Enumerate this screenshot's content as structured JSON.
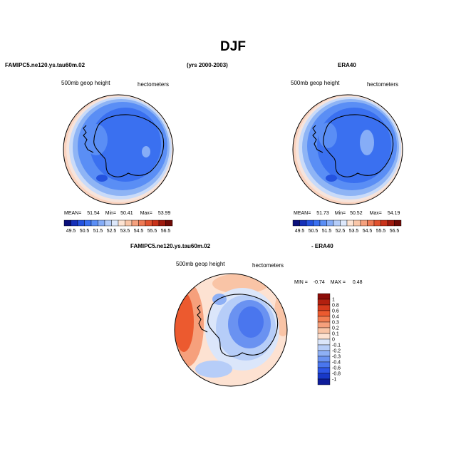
{
  "figure": {
    "title": "DJF",
    "header": {
      "left": "FAMIPC5.ne120.ys.tau60m.02",
      "center": "(yrs 2000-2003)",
      "right": "ERA40"
    },
    "diff_header": {
      "left": "FAMIPC5.ne120.ys.tau60m.02",
      "right": "- ERA40"
    }
  },
  "chart_data": [
    {
      "type": "heatmap",
      "subtype": "polar-contour-map",
      "panel": "model",
      "variable_label": "500mb geop height",
      "units_label": "hectometers",
      "stats": {
        "mean_label": "MEAN=",
        "mean": "51.54",
        "min_label": "Min=",
        "min": "50.41",
        "max_label": "Max=",
        "max": "53.99"
      },
      "colorbar": {
        "orientation": "horizontal",
        "ticks": [
          "49.5",
          "50.5",
          "51.5",
          "52.5",
          "53.5",
          "54.5",
          "55.5",
          "56.5"
        ],
        "colors": [
          "#0a0f7a",
          "#1530b8",
          "#2452de",
          "#3a70f0",
          "#5a8ef5",
          "#86adf7",
          "#b5cdf9",
          "#dde8fb",
          "#fde3d2",
          "#f9c6a8",
          "#f5a17e",
          "#ee7a55",
          "#e0522f",
          "#c8321a",
          "#9e1a0e",
          "#6e0a06"
        ]
      }
    },
    {
      "type": "heatmap",
      "subtype": "polar-contour-map",
      "panel": "obs",
      "variable_label": "500mb geop height",
      "units_label": "hectometers",
      "stats": {
        "mean_label": "MEAN=",
        "mean": "51.73",
        "min_label": "Min=",
        "min": "50.52",
        "max_label": "Max=",
        "max": "54.19"
      },
      "colorbar": {
        "orientation": "horizontal",
        "ticks": [
          "49.5",
          "50.5",
          "51.5",
          "52.5",
          "53.5",
          "54.5",
          "55.5",
          "56.5"
        ],
        "colors": [
          "#0a0f7a",
          "#1530b8",
          "#2452de",
          "#3a70f0",
          "#5a8ef5",
          "#86adf7",
          "#b5cdf9",
          "#dde8fb",
          "#fde3d2",
          "#f9c6a8",
          "#f5a17e",
          "#ee7a55",
          "#e0522f",
          "#c8321a",
          "#9e1a0e",
          "#6e0a06"
        ]
      }
    },
    {
      "type": "heatmap",
      "subtype": "polar-contour-map",
      "panel": "difference",
      "variable_label": "500mb geop height",
      "units_label": "hectometers",
      "stats": {
        "min_label": "MIN =",
        "min": "-0.74",
        "max_label": "MAX =",
        "max": "0.48"
      },
      "colorbar": {
        "orientation": "vertical",
        "ticks": [
          "1",
          "0.8",
          "0.6",
          "0.4",
          "0.3",
          "0.2",
          "0.1",
          "0",
          "-0.1",
          "-0.2",
          "-0.3",
          "-0.4",
          "-0.6",
          "-0.8",
          "-1"
        ],
        "colors": [
          "#8c0c08",
          "#b3200f",
          "#d63a1c",
          "#ec5a2f",
          "#f27e52",
          "#f6a07c",
          "#f9c4a6",
          "#fde2d2",
          "#dbe6fa",
          "#b6cdf8",
          "#8eb0f5",
          "#6a92f1",
          "#4a76ee",
          "#2e56e6",
          "#1838c8",
          "#0e1c9a"
        ]
      }
    }
  ]
}
